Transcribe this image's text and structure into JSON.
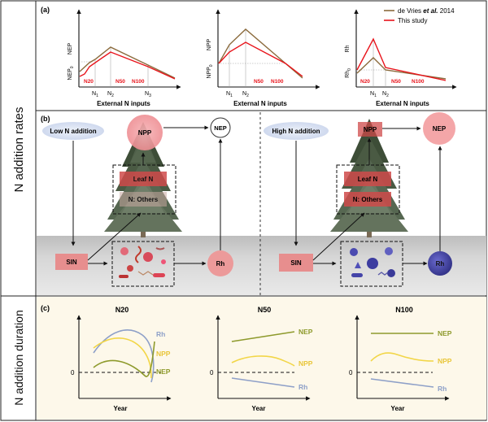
{
  "side_labels": {
    "rates": "N addition rates",
    "duration": "N addition duration"
  },
  "panel_a": {
    "label": "(a)",
    "legend": {
      "devries_prefix": "de Vries ",
      "devries_italic": "et al.",
      "devries_year": " 2014",
      "this_study": "This study"
    },
    "colors": {
      "devries": "#8b6b3d",
      "this_study": "#e8141b"
    },
    "xlabel": "External N inputs",
    "charts": [
      {
        "name": "nep",
        "ylabel": "NEP",
        "y0": "NEP",
        "y0_sub": "0",
        "ticks": [
          {
            "t": "N",
            "s": "1"
          },
          {
            "t": "N",
            "s": "2"
          },
          {
            "t": "N",
            "s": "3"
          }
        ],
        "zones": [
          "N20",
          "N50",
          "N100"
        ]
      },
      {
        "name": "npp",
        "ylabel": "NPP",
        "y0": "NPP",
        "y0_sub": "0",
        "ticks": [
          {
            "t": "N",
            "s": "1"
          },
          {
            "t": "N",
            "s": "2"
          }
        ],
        "zones": [
          "N50",
          "N100"
        ]
      },
      {
        "name": "rh",
        "ylabel": "Rh",
        "y0": "Rh",
        "y0_sub": "0",
        "ticks": [
          {
            "t": "N",
            "s": "1"
          },
          {
            "t": "N",
            "s": "2"
          }
        ],
        "zones": [
          "N20",
          "N50",
          "N100"
        ]
      }
    ]
  },
  "panel_b": {
    "label": "(b)",
    "low": {
      "title": "Low N addition",
      "npp": "NPP",
      "nep": "NEP",
      "leaf": "Leaf N",
      "others": "N: Others",
      "sin": "SIN",
      "rh": "Rh"
    },
    "high": {
      "title": "High N addition",
      "npp": "NPP",
      "nep": "NEP",
      "leaf": "Leaf N",
      "others": "N: Others",
      "sin": "SIN",
      "rh": "Rh"
    },
    "colors": {
      "pink": "#f0a0a4",
      "dark_red": "#cf4a4a",
      "blue_microbe": "#4a4aa8",
      "soil": "#d4d4d4",
      "bubble": "#dbe3f2"
    }
  },
  "panel_c": {
    "label": "(c)",
    "xlabel": "Year",
    "zero": "0",
    "colors": {
      "nep": "#8e9a2c",
      "npp": "#f2d648",
      "rh": "#8ea0c8"
    },
    "charts": [
      {
        "title": "N20",
        "labels": {
          "rh": "Rh",
          "npp": "NPP",
          "nep": "NEP"
        }
      },
      {
        "title": "N50",
        "labels": {
          "nep": "NEP",
          "npp": "NPP",
          "rh": "Rh"
        }
      },
      {
        "title": "N100",
        "labels": {
          "nep": "NEP",
          "npp": "NPP",
          "rh": "Rh"
        }
      }
    ]
  }
}
